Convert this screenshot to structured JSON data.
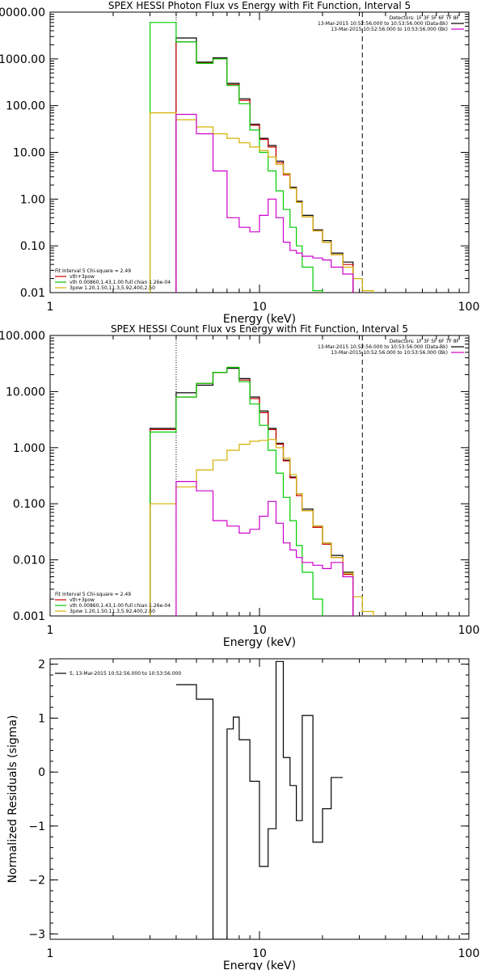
{
  "chart_data": [
    {
      "type": "line",
      "title": "SPEX HESSI Photon Flux vs Energy with Fit Function, Interval 5",
      "xlabel": "Energy (keV)",
      "ylabel": "",
      "xscale": "log",
      "yscale": "log",
      "xlim": [
        1,
        100
      ],
      "ylim": [
        0.01,
        10000
      ],
      "xticks": [
        {
          "v": 1,
          "label": "1"
        },
        {
          "v": 10,
          "label": "10"
        },
        {
          "v": 100,
          "label": "100"
        }
      ],
      "yticks": [
        {
          "v": 0.01,
          "label": "0.01"
        },
        {
          "v": 0.1,
          "label": "0.10"
        },
        {
          "v": 1,
          "label": "1.00"
        },
        {
          "v": 10,
          "label": "10.00"
        },
        {
          "v": 100,
          "label": "100.00"
        },
        {
          "v": 1000,
          "label": "1000.00"
        },
        {
          "v": 10000,
          "label": "10000.00"
        }
      ],
      "edges": [
        3,
        4,
        5,
        6,
        7,
        8,
        9,
        10,
        11,
        12,
        13,
        14,
        15,
        16,
        18,
        20,
        22,
        25,
        28,
        31,
        35,
        40
      ],
      "vlines": [
        {
          "x": 4,
          "style": "dotted",
          "color": "#000000"
        },
        {
          "x": 31,
          "style": "dashed",
          "color": "#000000"
        }
      ],
      "header_lines": [
        {
          "text": "Detectors: 1F 3F 5F 6F 7F 8F",
          "color": "",
          "swatch": false
        },
        {
          "text": "13-Mar-2015 10:52:56.000 to 10:53:56.000 (Data-Bk)",
          "color": "#000000",
          "swatch": true
        },
        {
          "text": "13-Mar-2015 10:52:56.000 to 10:53:56.000 (Bk)",
          "color": "#cc00cc",
          "swatch": true
        }
      ],
      "legend_lines": [
        {
          "text": "Fit Interval 5   Chi-square = 2.49",
          "color": "",
          "swatch": false
        },
        {
          "text": "vth+3pow",
          "color": "#cc0000",
          "swatch": true
        },
        {
          "text": "vth 0.00860,1.43,1.00  full chian 1.26e-04",
          "color": "#00cc00",
          "swatch": true
        },
        {
          "text": "3pow 1.20,1.50,11.3,5.92,400,2.50",
          "color": "#d4b000",
          "swatch": true
        }
      ],
      "series": [
        {
          "name": "Data-Bk",
          "color": "#000000",
          "values": [
            null,
            2800,
            850,
            1050,
            300,
            140,
            40,
            20,
            14,
            6.5,
            3.5,
            1.8,
            0.9,
            0.45,
            0.22,
            0.13,
            0.07,
            0.045,
            null,
            null,
            null
          ]
        },
        {
          "name": "vth+3pow",
          "color": "#cc0000",
          "values": [
            null,
            2300,
            820,
            1000,
            280,
            130,
            38,
            19,
            13,
            6.0,
            3.3,
            1.7,
            0.85,
            0.42,
            0.21,
            0.12,
            0.065,
            0.04,
            null,
            null,
            null
          ]
        },
        {
          "name": "vth",
          "color": "#00cc00",
          "values": [
            6000,
            2300,
            800,
            1000,
            270,
            110,
            30,
            10,
            4,
            1.5,
            0.6,
            0.25,
            0.1,
            0.035,
            0.011,
            null,
            null,
            null,
            null,
            null,
            null
          ]
        },
        {
          "name": "3pow",
          "color": "#d4b000",
          "values": [
            70,
            50,
            35,
            25,
            20,
            16,
            13,
            11,
            8,
            5.5,
            3.5,
            1.7,
            0.85,
            0.42,
            0.21,
            0.12,
            0.065,
            0.035,
            0.02,
            0.011,
            null
          ]
        },
        {
          "name": "Bk",
          "color": "#cc00cc",
          "values": [
            null,
            65,
            25,
            4,
            0.4,
            0.25,
            0.2,
            0.45,
            1.0,
            0.4,
            0.12,
            0.08,
            0.07,
            0.06,
            0.055,
            0.05,
            0.035,
            0.025,
            null,
            null,
            null
          ]
        }
      ]
    },
    {
      "type": "line",
      "title": "SPEX HESSI Count Flux vs Energy with Fit Function, Interval 5",
      "xlabel": "Energy (keV)",
      "ylabel": "",
      "xscale": "log",
      "yscale": "log",
      "xlim": [
        1,
        100
      ],
      "ylim": [
        0.001,
        100
      ],
      "xticks": [
        {
          "v": 1,
          "label": "1"
        },
        {
          "v": 10,
          "label": "10"
        },
        {
          "v": 100,
          "label": "100"
        }
      ],
      "yticks": [
        {
          "v": 0.001,
          "label": "0.001"
        },
        {
          "v": 0.01,
          "label": "0.010"
        },
        {
          "v": 0.1,
          "label": "0.100"
        },
        {
          "v": 1,
          "label": "1.000"
        },
        {
          "v": 10,
          "label": "10.000"
        },
        {
          "v": 100,
          "label": "100.000"
        }
      ],
      "edges": [
        3,
        4,
        5,
        6,
        7,
        8,
        9,
        10,
        11,
        12,
        13,
        14,
        15,
        16,
        18,
        20,
        22,
        25,
        28,
        31,
        35,
        40
      ],
      "vlines": [
        {
          "x": 4,
          "style": "dotted",
          "color": "#000000"
        },
        {
          "x": 31,
          "style": "dashed",
          "color": "#000000"
        }
      ],
      "header_lines": [
        {
          "text": "Detectors: 1F 3F 5F 6F 7F 8F",
          "color": "",
          "swatch": false
        },
        {
          "text": "13-Mar-2015 10:52:56.000 to 10:53:56.000 (Data-Bk)",
          "color": "#000000",
          "swatch": true
        },
        {
          "text": "13-Mar-2015 10:52:56.000 to 10:53:56.000 (Bk)",
          "color": "#cc00cc",
          "swatch": true
        }
      ],
      "legend_lines": [
        {
          "text": "Fit Interval 5   Chi-square = 2.49",
          "color": "",
          "swatch": false
        },
        {
          "text": "vth+3pow",
          "color": "#cc0000",
          "swatch": true
        },
        {
          "text": "vth 0.00860,1.43,1.00  full chian 1.26e-04",
          "color": "#00cc00",
          "swatch": true
        },
        {
          "text": "3pow 1.20,1.50,11.3,5.92,400,2.50",
          "color": "#d4b000",
          "swatch": true
        }
      ],
      "series": [
        {
          "name": "Data-Bk",
          "color": "#000000",
          "values": [
            2.2,
            9.5,
            13,
            22,
            26,
            17,
            8,
            4.5,
            2.2,
            1.2,
            0.6,
            0.3,
            0.15,
            0.08,
            0.04,
            0.02,
            0.012,
            0.006,
            null,
            null,
            null
          ]
        },
        {
          "name": "vth+3pow",
          "color": "#cc0000",
          "values": [
            2.1,
            8.0,
            14,
            22,
            27,
            16,
            7.5,
            4.2,
            2.1,
            1.15,
            0.58,
            0.29,
            0.14,
            0.075,
            0.038,
            0.019,
            0.011,
            0.0055,
            null,
            null,
            null
          ]
        },
        {
          "name": "vth",
          "color": "#00cc00",
          "values": [
            1.9,
            8.0,
            14,
            22,
            27,
            15,
            6,
            2.5,
            0.9,
            0.35,
            0.13,
            0.05,
            0.018,
            0.006,
            0.002,
            null,
            null,
            null,
            null,
            null,
            null
          ]
        },
        {
          "name": "3pow",
          "color": "#d4b000",
          "values": [
            0.1,
            0.2,
            0.4,
            0.6,
            0.9,
            1.15,
            1.3,
            1.35,
            1.4,
            1.0,
            0.65,
            0.33,
            0.15,
            0.075,
            0.04,
            0.02,
            0.011,
            0.0058,
            0.0022,
            0.0012,
            null
          ]
        },
        {
          "name": "Bk",
          "color": "#cc00cc",
          "values": [
            null,
            0.25,
            0.17,
            0.05,
            0.04,
            0.03,
            0.035,
            0.06,
            0.11,
            0.045,
            0.02,
            0.015,
            0.011,
            0.009,
            0.008,
            0.007,
            0.009,
            0.005,
            null,
            null,
            null
          ]
        }
      ]
    },
    {
      "type": "line",
      "title": "",
      "xlabel": "Energy (keV)",
      "ylabel": "Normalized Residuals (sigma)",
      "xscale": "log",
      "yscale": "linear",
      "xlim": [
        1,
        100
      ],
      "ylim": [
        -3.1,
        2.1
      ],
      "xticks": [
        {
          "v": 1,
          "label": "1"
        },
        {
          "v": 10,
          "label": "10"
        },
        {
          "v": 100,
          "label": "100"
        }
      ],
      "yticks": [
        {
          "v": -3,
          "label": "−3"
        },
        {
          "v": -2,
          "label": "−2"
        },
        {
          "v": -1,
          "label": "−1"
        },
        {
          "v": 0,
          "label": "0"
        },
        {
          "v": 1,
          "label": "1"
        },
        {
          "v": 2,
          "label": "2"
        }
      ],
      "edges": [
        4,
        5,
        6,
        7,
        7.5,
        8,
        9,
        10,
        11,
        12,
        13,
        14,
        15,
        16,
        18,
        20,
        22,
        25,
        28,
        31
      ],
      "vlines": [],
      "header_lines": [],
      "legend_lines": [
        {
          "text": "5, 13-Mar-2015 10:52:56.000 to 10:53:56.000",
          "color": "#000000",
          "swatch": true
        }
      ],
      "series": [
        {
          "name": "",
          "color": "#000000",
          "values": [
            1.62,
            1.35,
            -3.1,
            0.8,
            1.02,
            0.6,
            -0.17,
            -1.75,
            -1.05,
            2.05,
            0.27,
            -0.25,
            -0.9,
            1.05,
            -1.3,
            -0.68,
            -0.1,
            null,
            null
          ]
        }
      ]
    }
  ]
}
